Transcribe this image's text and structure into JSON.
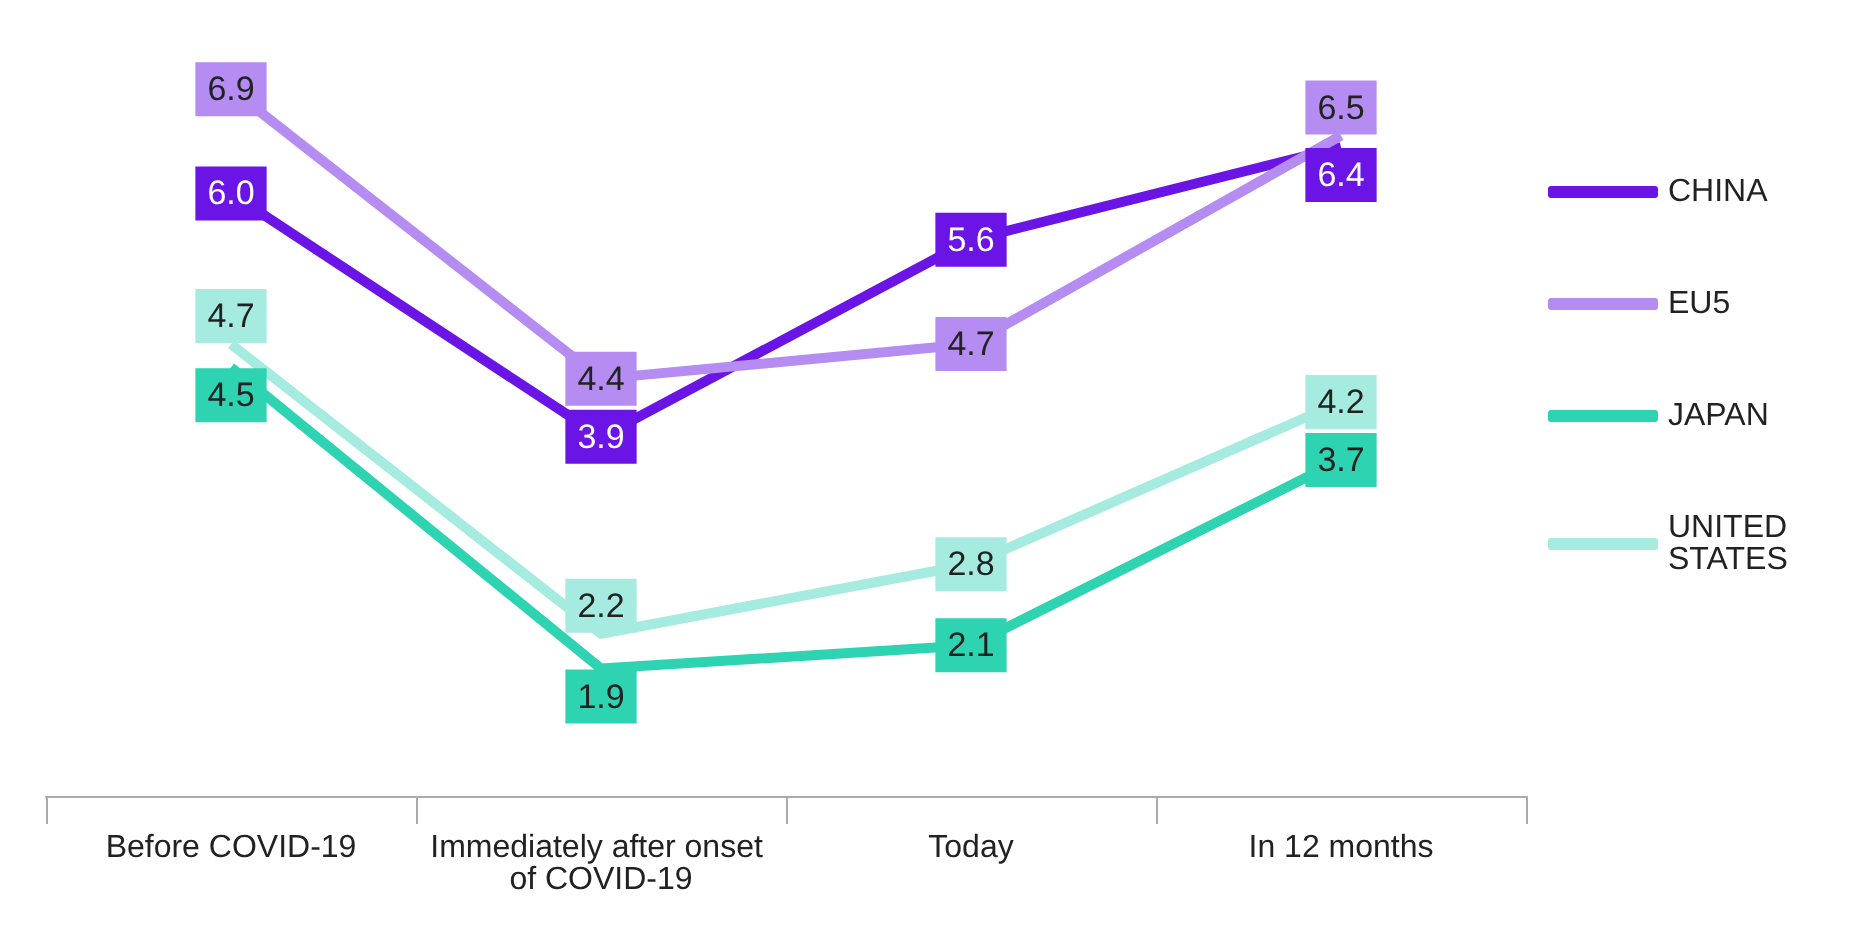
{
  "chart_data": {
    "type": "line",
    "categories": [
      "Before COVID-19",
      "Immediately after onset of COVID-19",
      "Today",
      "In 12 months"
    ],
    "series": [
      {
        "name": "CHINA",
        "color": "#6a14e6",
        "values": [
          6.0,
          3.9,
          5.6,
          6.4
        ],
        "value_labels": [
          "6.0",
          "3.9",
          "5.6",
          "6.4"
        ]
      },
      {
        "name": "EU5",
        "color": "#b48cf2",
        "values": [
          6.9,
          4.4,
          4.7,
          6.5
        ],
        "value_labels": [
          "6.9",
          "4.4",
          "4.7",
          "6.5"
        ]
      },
      {
        "name": "JAPAN",
        "color": "#2ed3b2",
        "values": [
          4.5,
          1.9,
          2.1,
          3.7
        ],
        "value_labels": [
          "4.5",
          "1.9",
          "2.1",
          "3.7"
        ]
      },
      {
        "name": "UNITED STATES",
        "color": "#a6ebdf",
        "values": [
          4.7,
          2.2,
          2.8,
          4.2
        ],
        "value_labels": [
          "4.7",
          "2.2",
          "2.8",
          "4.2"
        ]
      }
    ],
    "legend": "right",
    "grid": false
  }
}
